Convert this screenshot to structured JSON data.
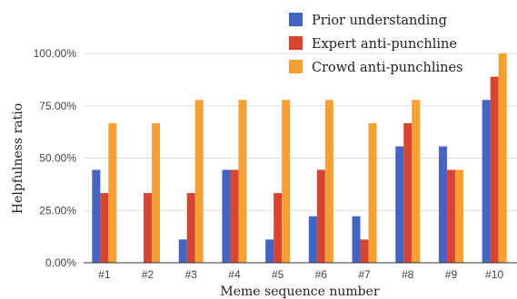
{
  "chart_data": {
    "type": "bar",
    "xlabel": "Meme sequence number",
    "ylabel": "Helpfulness ratio",
    "ylim": [
      0,
      100
    ],
    "yticks": [
      "0.00%",
      "25.00%",
      "50.00%",
      "75.00%",
      "100.00%"
    ],
    "ytick_values": [
      0,
      25,
      50,
      75,
      100
    ],
    "grid": true,
    "legend_position": "top-right",
    "categories": [
      "#1",
      "#2",
      "#3",
      "#4",
      "#5",
      "#6",
      "#7",
      "#8",
      "#9",
      "#10"
    ],
    "series": [
      {
        "name": "Prior understanding",
        "color": "#4464c4",
        "values": [
          44.4,
          0,
          11.1,
          44.4,
          11.1,
          22.2,
          22.2,
          55.6,
          55.6,
          77.8
        ]
      },
      {
        "name": "Expert anti-punchline",
        "color": "#d54530",
        "values": [
          33.3,
          33.3,
          33.3,
          44.4,
          33.3,
          44.4,
          11.1,
          66.7,
          44.4,
          88.9
        ]
      },
      {
        "name": "Crowd anti-punchlines",
        "color": "#f6a033",
        "values": [
          66.7,
          66.7,
          77.8,
          77.8,
          77.8,
          77.8,
          66.7,
          77.8,
          44.4,
          100
        ]
      }
    ]
  }
}
